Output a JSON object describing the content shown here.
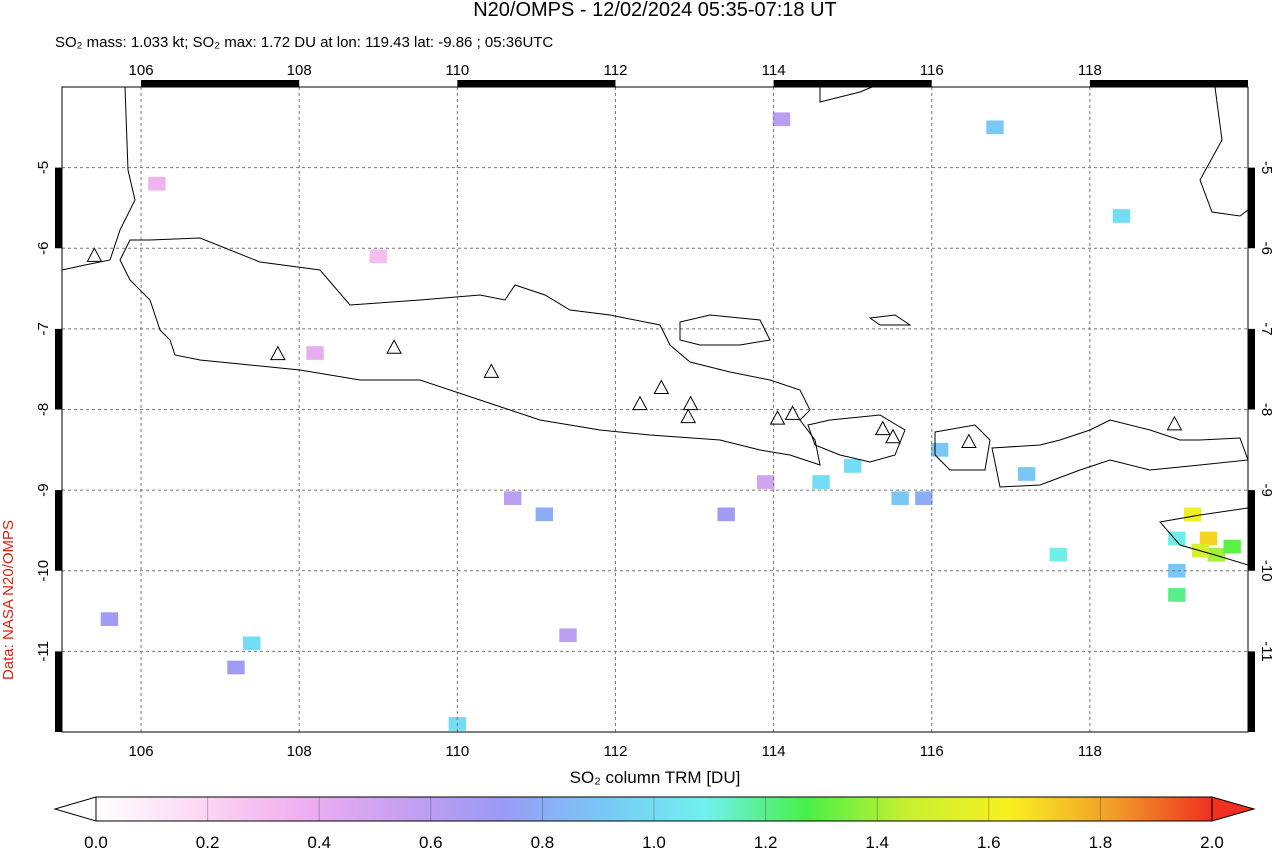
{
  "chart_data": {
    "type": "map",
    "title": "N20/OMPS - 12/02/2024 05:35-07:18 UT",
    "subtitle": "SO₂ mass: 1.033 kt; SO₂ max: 1.72 DU at lon: 119.43 lat: -9.86 ; 05:36UTC",
    "xlabel": "SO₂ column TRM [DU]",
    "credit": "Data: NASA N20/OMPS",
    "xlim": [
      105,
      120
    ],
    "ylim": [
      -12,
      -4
    ],
    "xticks": [
      106,
      108,
      110,
      112,
      114,
      116,
      118
    ],
    "yticks": [
      -5,
      -6,
      -7,
      -8,
      -9,
      -10,
      -11
    ],
    "grid": true,
    "colorbar": {
      "lim": [
        0,
        2
      ],
      "ticks": [
        {
          "value": 0,
          "label": "0.0"
        },
        {
          "value": 0.2,
          "label": "0.2"
        },
        {
          "value": 0.4,
          "label": "0.4"
        },
        {
          "value": 0.6,
          "label": "0.6"
        },
        {
          "value": 0.8,
          "label": "0.8"
        },
        {
          "value": 1,
          "label": "1.0"
        },
        {
          "value": 1.2,
          "label": "1.2"
        },
        {
          "value": 1.4,
          "label": "1.4"
        },
        {
          "value": 1.6,
          "label": "1.6"
        },
        {
          "value": 1.8,
          "label": "1.8"
        },
        {
          "value": 2,
          "label": "2.0"
        }
      ],
      "colors": [
        "#ffffff",
        "#fbd8f4",
        "#f0b0f0",
        "#c8a0f0",
        "#9a9af5",
        "#78c8f5",
        "#70f0f0",
        "#48f048",
        "#c8f030",
        "#f8f020",
        "#f0a028",
        "#f03020"
      ]
    },
    "pixels": {
      "lon": [
        119.5,
        119.3,
        119.6,
        119.4,
        119.8,
        119.1,
        117.2,
        116.1,
        115.9,
        115.6,
        115.0,
        114.6,
        117.6,
        119.1,
        119.1,
        107.4,
        107.2,
        110.0,
        111.1,
        110.7,
        113.9,
        118.4,
        116.8,
        114.1,
        111.4,
        108.2,
        109.0,
        106.2,
        105.6,
        113.4
      ],
      "lat": [
        -9.6,
        -9.3,
        -9.8,
        -9.75,
        -9.7,
        -9.6,
        -8.8,
        -8.5,
        -9.1,
        -9.1,
        -8.7,
        -8.9,
        -9.8,
        -10.0,
        -10.3,
        -10.9,
        -11.2,
        -11.9,
        -9.3,
        -9.1,
        -8.9,
        -5.6,
        -4.5,
        -4.4,
        -10.8,
        -7.3,
        -6.1,
        -5.2,
        -10.6,
        -9.3
      ],
      "values": [
        1.7,
        1.6,
        1.4,
        1.5,
        1.3,
        1.1,
        0.9,
        0.9,
        0.8,
        0.9,
        1.0,
        1.0,
        1.1,
        0.9,
        1.2,
        1.0,
        0.7,
        1.0,
        0.8,
        0.6,
        0.5,
        1.0,
        0.9,
        0.6,
        0.6,
        0.4,
        0.3,
        0.35,
        0.7,
        0.7
      ]
    },
    "volcanoes": {
      "lon": [
        105.41,
        107.73,
        109.2,
        110.43,
        112.31,
        112.58,
        112.95,
        112.92,
        114.05,
        114.24,
        115.38,
        115.51,
        116.47,
        119.07
      ],
      "lat": [
        -6.1,
        -7.32,
        -7.24,
        -7.54,
        -7.94,
        -7.74,
        -7.94,
        -8.1,
        -8.12,
        -8.06,
        -8.25,
        -8.35,
        -8.41,
        -8.19
      ]
    }
  }
}
